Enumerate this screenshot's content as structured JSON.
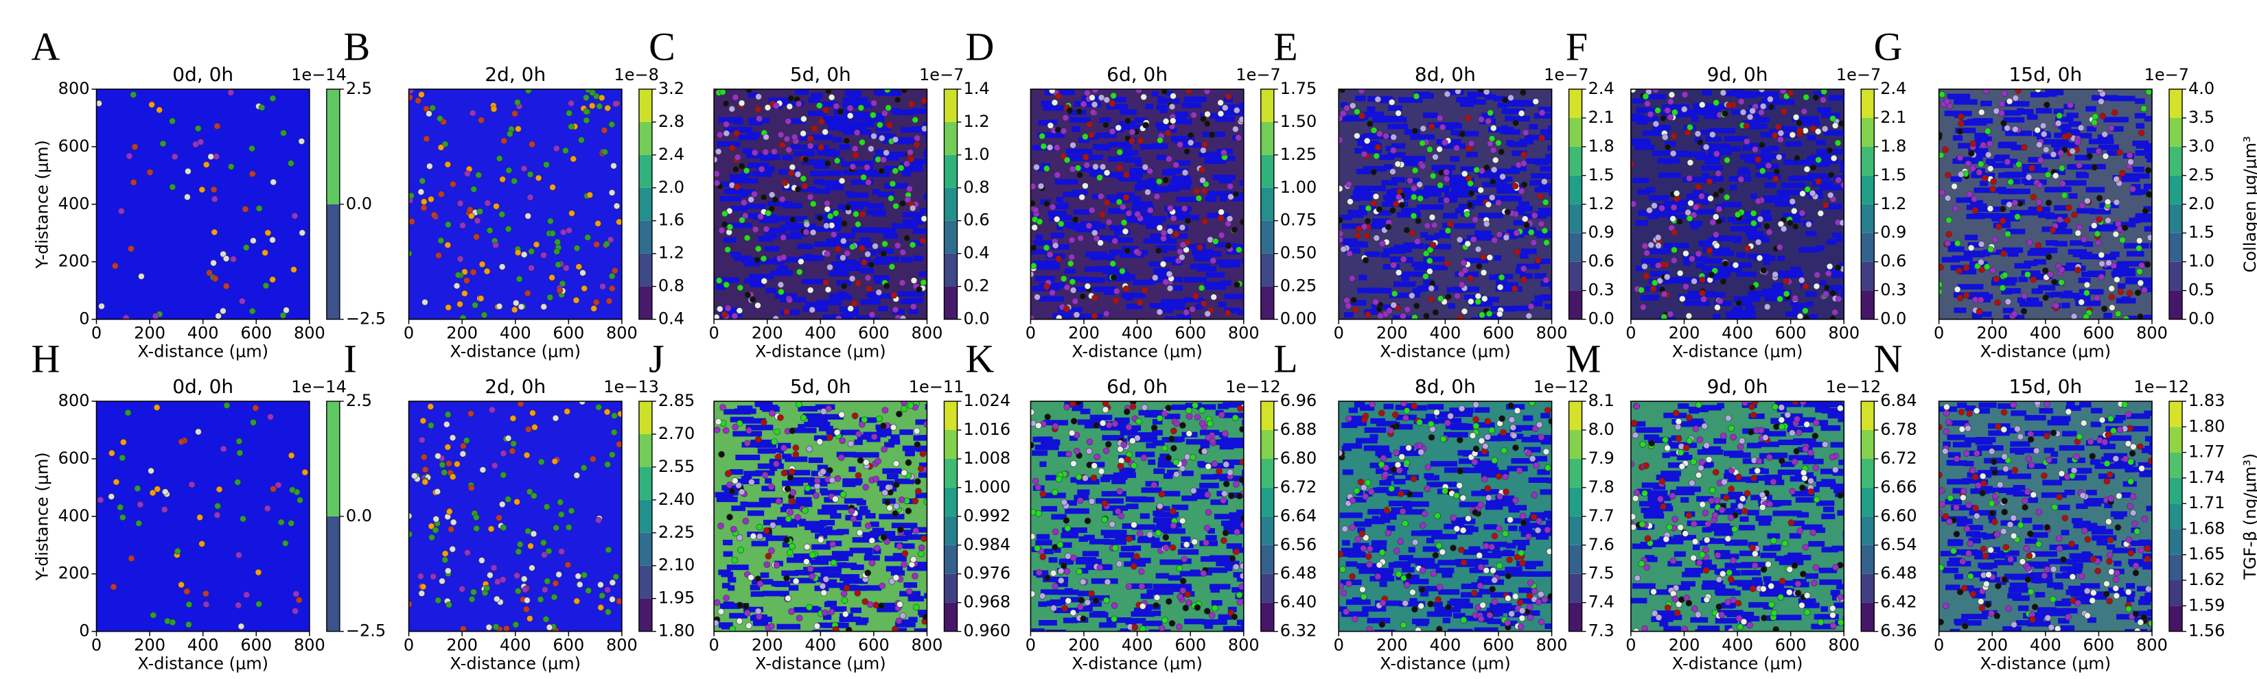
{
  "chart_data": [
    {
      "type": "heatmap",
      "panel_label": "A",
      "title": "0d, 0h",
      "xlabel": "X-distance (μm)",
      "ylabel": "Y-distance (μm)",
      "xlim": [
        0,
        800
      ],
      "ylim": [
        0,
        800
      ],
      "xticks": [
        0,
        200,
        400,
        600,
        800
      ],
      "yticks": [
        0,
        200,
        400,
        600,
        800
      ],
      "colormap": "viridis",
      "colorbar": {
        "offset_label": "1e−14",
        "lim": [
          -2.5,
          2.5
        ],
        "ticks": [
          {
            "value": -2.5,
            "label": "−2.5"
          },
          {
            "value": 0,
            "label": "0.0"
          },
          2.5
        ]
      }
    },
    {
      "type": "heatmap",
      "panel_label": "B",
      "title": "2d, 0h",
      "xlabel": "X-distance (μm)",
      "xlim": [
        0,
        800
      ],
      "ylim": [
        0,
        800
      ],
      "xticks": [
        0,
        200,
        400,
        600,
        800
      ],
      "colormap": "viridis",
      "colorbar": {
        "offset_label": "1e−8",
        "lim": [
          0.4,
          3.2
        ],
        "ticks": [
          0.4,
          0.8,
          1.2,
          1.6,
          {
            "value": 2,
            "label": "2.0"
          },
          2.4,
          2.8,
          3.2
        ]
      }
    },
    {
      "type": "heatmap",
      "panel_label": "C",
      "title": "5d, 0h",
      "xlabel": "X-distance (μm)",
      "xlim": [
        0,
        800
      ],
      "ylim": [
        0,
        800
      ],
      "xticks": [
        0,
        200,
        400,
        600,
        800
      ],
      "colormap": "viridis",
      "colorbar": {
        "offset_label": "1e−7",
        "lim": [
          0,
          1.4
        ],
        "ticks": [
          {
            "value": 0,
            "label": "0.0"
          },
          0.2,
          0.4,
          0.6,
          0.8,
          {
            "value": 1,
            "label": "1.0"
          },
          1.2,
          1.4
        ]
      }
    },
    {
      "type": "heatmap",
      "panel_label": "D",
      "title": "6d, 0h",
      "xlabel": "X-distance (μm)",
      "xlim": [
        0,
        800
      ],
      "ylim": [
        0,
        800
      ],
      "xticks": [
        0,
        200,
        400,
        600,
        800
      ],
      "colormap": "viridis",
      "colorbar": {
        "offset_label": "1e−7",
        "lim": [
          0,
          1.75
        ],
        "ticks": [
          {
            "value": 0,
            "label": "0.00"
          },
          0.25,
          {
            "value": 0.5,
            "label": "0.50"
          },
          0.75,
          {
            "value": 1,
            "label": "1.00"
          },
          1.25,
          {
            "value": 1.5,
            "label": "1.50"
          },
          1.75
        ]
      }
    },
    {
      "type": "heatmap",
      "panel_label": "E",
      "title": "8d, 0h",
      "xlabel": "X-distance (μm)",
      "xlim": [
        0,
        800
      ],
      "ylim": [
        0,
        800
      ],
      "xticks": [
        0,
        200,
        400,
        600,
        800
      ],
      "colormap": "viridis",
      "colorbar": {
        "offset_label": "1e−7",
        "lim": [
          0,
          2.4
        ],
        "ticks": [
          {
            "value": 0,
            "label": "0.0"
          },
          0.3,
          0.6,
          0.9,
          1.2,
          1.5,
          1.8,
          2.1,
          2.4
        ]
      }
    },
    {
      "type": "heatmap",
      "panel_label": "F",
      "title": "9d, 0h",
      "xlabel": "X-distance (μm)",
      "xlim": [
        0,
        800
      ],
      "ylim": [
        0,
        800
      ],
      "xticks": [
        0,
        200,
        400,
        600,
        800
      ],
      "colormap": "viridis",
      "colorbar": {
        "offset_label": "1e−7",
        "lim": [
          0,
          2.4
        ],
        "ticks": [
          {
            "value": 0,
            "label": "0.0"
          },
          0.3,
          0.6,
          0.9,
          1.2,
          1.5,
          1.8,
          2.1,
          2.4
        ]
      }
    },
    {
      "type": "heatmap",
      "panel_label": "G",
      "title": "15d, 0h",
      "xlabel": "X-distance (μm)",
      "xlim": [
        0,
        800
      ],
      "ylim": [
        0,
        800
      ],
      "xticks": [
        0,
        200,
        400,
        600,
        800
      ],
      "colormap": "viridis",
      "colorbar": {
        "offset_label": "1e−7",
        "label": "Collagen μg/μm³",
        "lim": [
          0,
          4
        ],
        "ticks": [
          {
            "value": 0,
            "label": "0.0"
          },
          0.5,
          {
            "value": 1,
            "label": "1.0"
          },
          1.5,
          {
            "value": 2,
            "label": "2.0"
          },
          2.5,
          {
            "value": 3,
            "label": "3.0"
          },
          3.5,
          {
            "value": 4,
            "label": "4.0"
          }
        ]
      }
    },
    {
      "type": "heatmap",
      "panel_label": "H",
      "title": "0d, 0h",
      "xlabel": "X-distance (μm)",
      "ylabel": "Y-distance (μm)",
      "xlim": [
        0,
        800
      ],
      "ylim": [
        0,
        800
      ],
      "xticks": [
        0,
        200,
        400,
        600,
        800
      ],
      "yticks": [
        0,
        200,
        400,
        600,
        800
      ],
      "colormap": "viridis",
      "colorbar": {
        "offset_label": "1e−14",
        "lim": [
          -2.5,
          2.5
        ],
        "ticks": [
          {
            "value": -2.5,
            "label": "−2.5"
          },
          {
            "value": 0,
            "label": "0.0"
          },
          2.5
        ]
      }
    },
    {
      "type": "heatmap",
      "panel_label": "I",
      "title": "2d, 0h",
      "xlabel": "X-distance (μm)",
      "xlim": [
        0,
        800
      ],
      "ylim": [
        0,
        800
      ],
      "xticks": [
        0,
        200,
        400,
        600,
        800
      ],
      "colormap": "viridis",
      "colorbar": {
        "offset_label": "1e−13",
        "lim": [
          1.8,
          2.85
        ],
        "ticks": [
          {
            "value": 1.8,
            "label": "1.80"
          },
          1.95,
          {
            "value": 2.1,
            "label": "2.10"
          },
          2.25,
          {
            "value": 2.4,
            "label": "2.40"
          },
          2.55,
          {
            "value": 2.7,
            "label": "2.70"
          },
          2.85
        ]
      }
    },
    {
      "type": "heatmap",
      "panel_label": "J",
      "title": "5d, 0h",
      "xlabel": "X-distance (μm)",
      "xlim": [
        0,
        800
      ],
      "ylim": [
        0,
        800
      ],
      "xticks": [
        0,
        200,
        400,
        600,
        800
      ],
      "colormap": "viridis",
      "colorbar": {
        "offset_label": "1e−11",
        "lim": [
          0.96,
          1.024
        ],
        "ticks": [
          {
            "value": 0.96,
            "label": "0.960"
          },
          0.968,
          0.976,
          0.984,
          0.992,
          {
            "value": 1,
            "label": "1.000"
          },
          1.008,
          1.016,
          1.024
        ]
      }
    },
    {
      "type": "heatmap",
      "panel_label": "K",
      "title": "6d, 0h",
      "xlabel": "X-distance (μm)",
      "xlim": [
        0,
        800
      ],
      "ylim": [
        0,
        800
      ],
      "xticks": [
        0,
        200,
        400,
        600,
        800
      ],
      "colormap": "viridis",
      "colorbar": {
        "offset_label": "1e−12",
        "lim": [
          6.32,
          6.96
        ],
        "ticks": [
          6.32,
          {
            "value": 6.4,
            "label": "6.40"
          },
          6.48,
          6.56,
          6.64,
          6.72,
          {
            "value": 6.8,
            "label": "6.80"
          },
          6.88,
          6.96
        ]
      }
    },
    {
      "type": "heatmap",
      "panel_label": "L",
      "title": "8d, 0h",
      "xlabel": "X-distance (μm)",
      "xlim": [
        0,
        800
      ],
      "ylim": [
        0,
        800
      ],
      "xticks": [
        0,
        200,
        400,
        600,
        800
      ],
      "colormap": "viridis",
      "colorbar": {
        "offset_label": "1e−12",
        "lim": [
          7.3,
          8.1
        ],
        "ticks": [
          7.3,
          7.4,
          7.5,
          7.6,
          7.7,
          7.8,
          7.9,
          {
            "value": 8,
            "label": "8.0"
          },
          8.1
        ]
      }
    },
    {
      "type": "heatmap",
      "panel_label": "M",
      "title": "9d, 0h",
      "xlabel": "X-distance (μm)",
      "xlim": [
        0,
        800
      ],
      "ylim": [
        0,
        800
      ],
      "xticks": [
        0,
        200,
        400,
        600,
        800
      ],
      "colormap": "viridis",
      "colorbar": {
        "offset_label": "1e−12",
        "lim": [
          6.36,
          6.84
        ],
        "ticks": [
          6.36,
          6.42,
          6.48,
          6.54,
          {
            "value": 6.6,
            "label": "6.60"
          },
          6.66,
          6.72,
          6.78,
          6.84
        ]
      }
    },
    {
      "type": "heatmap",
      "panel_label": "N",
      "title": "15d, 0h",
      "xlabel": "X-distance (μm)",
      "xlim": [
        0,
        800
      ],
      "ylim": [
        0,
        800
      ],
      "xticks": [
        0,
        200,
        400,
        600,
        800
      ],
      "colormap": "viridis",
      "colorbar": {
        "offset_label": "1e−12",
        "label": "TGF-β (ng/μm³)",
        "lim": [
          1.56,
          1.83
        ],
        "ticks": [
          1.56,
          1.59,
          1.62,
          1.65,
          1.68,
          1.71,
          1.74,
          1.77,
          {
            "value": 1.8,
            "label": "1.80"
          },
          1.83
        ]
      }
    }
  ]
}
